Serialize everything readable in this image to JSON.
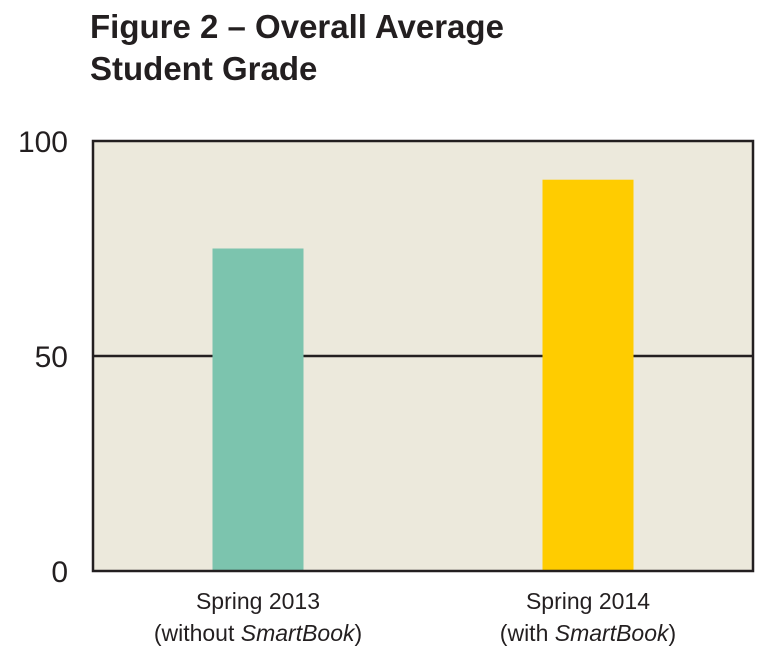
{
  "chart_data": {
    "type": "bar",
    "title_lines": [
      "Figure 2 – Overall Average",
      "Student Grade"
    ],
    "categories": [
      {
        "line1": "Spring 2013",
        "line2_prefix": "(without ",
        "line2_italic": "SmartBook",
        "line2_suffix": ")"
      },
      {
        "line1": "Spring 2014",
        "line2_prefix": "(with ",
        "line2_italic": "SmartBook",
        "line2_suffix": ")"
      }
    ],
    "values": [
      75,
      91
    ],
    "colors": [
      "#7cc4ae",
      "#ffcc00"
    ],
    "ylim": [
      0,
      100
    ],
    "yticks": [
      "0",
      "50",
      "100"
    ],
    "gridlines": [
      50
    ],
    "plot_background": "#ece9dc",
    "xlabel": "",
    "ylabel": ""
  }
}
